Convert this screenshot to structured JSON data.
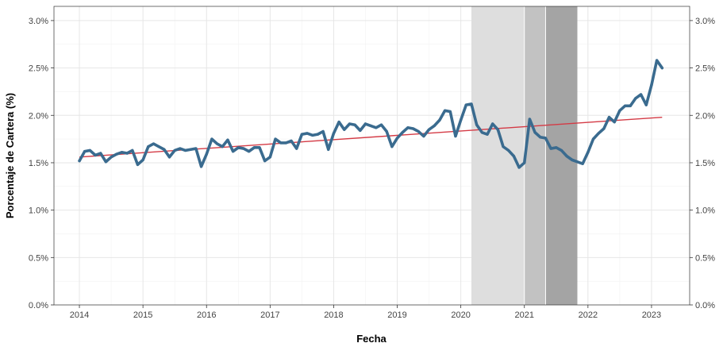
{
  "chart_data": {
    "type": "line",
    "xlabel": "Fecha",
    "ylabel": "Porcentaje de Cartera (%)",
    "xlim": [
      2013.6,
      2023.6
    ],
    "ylim": [
      0,
      3.15
    ],
    "x_ticks": [
      2014,
      2015,
      2016,
      2017,
      2018,
      2019,
      2020,
      2021,
      2022,
      2023
    ],
    "x_tick_labels": [
      "2014",
      "2015",
      "2016",
      "2017",
      "2018",
      "2019",
      "2020",
      "2021",
      "2022",
      "2023"
    ],
    "y_ticks": [
      0,
      0.5,
      1.0,
      1.5,
      2.0,
      2.5,
      3.0
    ],
    "y_tick_labels": [
      "0.0%",
      "0.5%",
      "1.0%",
      "1.5%",
      "2.0%",
      "2.5%",
      "3.0%"
    ],
    "grid": true,
    "secondary_y_axis": true,
    "colors": {
      "series": "#3a6b8f",
      "trend": "#d43a45",
      "band_light": "#dedede",
      "band_mid": "#c2c2c2",
      "band_dark": "#a4a4a4",
      "grid_major": "#e6e6e6",
      "grid_minor": "#f2f2f2"
    },
    "shaded_periods": [
      {
        "start": "2020-03",
        "end": "2020-12",
        "shade": "light"
      },
      {
        "start": "2021-01",
        "end": "2021-04",
        "shade": "mid"
      },
      {
        "start": "2021-05",
        "end": "2021-10",
        "shade": "dark"
      }
    ],
    "trend_line": {
      "x": [
        "2014-01",
        "2023-03"
      ],
      "y": [
        1.56,
        1.98
      ]
    },
    "series": [
      {
        "x": [
          "2014-01",
          "2014-02",
          "2014-03",
          "2014-04",
          "2014-05",
          "2014-06",
          "2014-07",
          "2014-08",
          "2014-09",
          "2014-10",
          "2014-11",
          "2014-12",
          "2015-01",
          "2015-02",
          "2015-03",
          "2015-04",
          "2015-05",
          "2015-06",
          "2015-07",
          "2015-08",
          "2015-09",
          "2015-10",
          "2015-11",
          "2015-12",
          "2016-01",
          "2016-02",
          "2016-03",
          "2016-04",
          "2016-05",
          "2016-06",
          "2016-07",
          "2016-08",
          "2016-09",
          "2016-10",
          "2016-11",
          "2016-12",
          "2017-01",
          "2017-02",
          "2017-03",
          "2017-04",
          "2017-05",
          "2017-06",
          "2017-07",
          "2017-08",
          "2017-09",
          "2017-10",
          "2017-11",
          "2017-12",
          "2018-01",
          "2018-02",
          "2018-03",
          "2018-04",
          "2018-05",
          "2018-06",
          "2018-07",
          "2018-08",
          "2018-09",
          "2018-10",
          "2018-11",
          "2018-12",
          "2019-01",
          "2019-02",
          "2019-03",
          "2019-04",
          "2019-05",
          "2019-06",
          "2019-07",
          "2019-08",
          "2019-09",
          "2019-10",
          "2019-11",
          "2019-12",
          "2020-01",
          "2020-02",
          "2020-03",
          "2020-04",
          "2020-05",
          "2020-06",
          "2020-07",
          "2020-08",
          "2020-09",
          "2020-10",
          "2020-11",
          "2020-12",
          "2021-01",
          "2021-02",
          "2021-03",
          "2021-04",
          "2021-05",
          "2021-06",
          "2021-07",
          "2021-08",
          "2021-09",
          "2021-10",
          "2021-11",
          "2021-12",
          "2022-01",
          "2022-02",
          "2022-03",
          "2022-04",
          "2022-05",
          "2022-06",
          "2022-07",
          "2022-08",
          "2022-09",
          "2022-10",
          "2022-11",
          "2022-12",
          "2023-01",
          "2023-02",
          "2023-03"
        ],
        "y": [
          1.52,
          1.62,
          1.63,
          1.58,
          1.6,
          1.51,
          1.56,
          1.59,
          1.61,
          1.6,
          1.63,
          1.48,
          1.53,
          1.67,
          1.7,
          1.67,
          1.64,
          1.56,
          1.63,
          1.65,
          1.63,
          1.64,
          1.65,
          1.46,
          1.59,
          1.75,
          1.7,
          1.67,
          1.74,
          1.62,
          1.66,
          1.65,
          1.62,
          1.66,
          1.66,
          1.52,
          1.56,
          1.75,
          1.71,
          1.71,
          1.73,
          1.65,
          1.8,
          1.81,
          1.79,
          1.8,
          1.83,
          1.64,
          1.81,
          1.93,
          1.85,
          1.91,
          1.9,
          1.84,
          1.91,
          1.89,
          1.87,
          1.9,
          1.83,
          1.67,
          1.76,
          1.82,
          1.87,
          1.86,
          1.83,
          1.78,
          1.85,
          1.89,
          1.95,
          2.05,
          2.04,
          1.78,
          1.95,
          2.11,
          2.12,
          1.9,
          1.82,
          1.8,
          1.91,
          1.85,
          1.67,
          1.63,
          1.57,
          1.45,
          1.5,
          1.96,
          1.82,
          1.77,
          1.76,
          1.65,
          1.66,
          1.63,
          1.57,
          1.53,
          1.51,
          1.49,
          1.61,
          1.75,
          1.81,
          1.86,
          1.98,
          1.93,
          2.05,
          2.1,
          2.1,
          2.18,
          2.22,
          2.11,
          2.32,
          2.58,
          2.5
        ]
      }
    ]
  }
}
